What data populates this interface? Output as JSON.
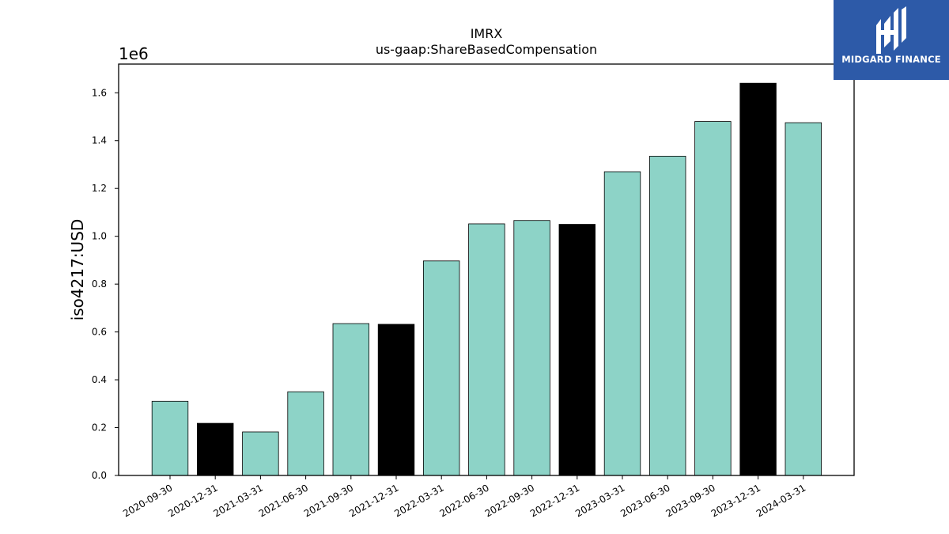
{
  "brand": {
    "name": "MIDGARD FINANCE",
    "background_color": "#2d5aa8"
  },
  "chart_data": {
    "type": "bar",
    "title": "IMRX",
    "subtitle": "us-gaap:ShareBasedCompensation",
    "xlabel": "",
    "ylabel": "iso4217:USD",
    "y_scale_label": "1e6",
    "ylim": [
      0,
      1.72
    ],
    "y_ticks": [
      "0.0",
      "0.2",
      "0.4",
      "0.6",
      "0.8",
      "1.0",
      "1.2",
      "1.4",
      "1.6"
    ],
    "categories": [
      "2020-09-30",
      "2020-12-31",
      "2021-03-31",
      "2021-06-30",
      "2021-09-30",
      "2021-12-31",
      "2022-03-31",
      "2022-06-30",
      "2022-09-30",
      "2022-12-31",
      "2023-03-31",
      "2023-06-30",
      "2023-09-30",
      "2023-12-31",
      "2024-03-31"
    ],
    "values": [
      0.31,
      0.218,
      0.182,
      0.35,
      0.635,
      0.632,
      0.897,
      1.052,
      1.066,
      1.05,
      1.27,
      1.335,
      1.48,
      1.64,
      1.475
    ],
    "bar_colors": [
      "#8dd3c7",
      "#000000",
      "#8dd3c7",
      "#8dd3c7",
      "#8dd3c7",
      "#000000",
      "#8dd3c7",
      "#8dd3c7",
      "#8dd3c7",
      "#000000",
      "#8dd3c7",
      "#8dd3c7",
      "#8dd3c7",
      "#000000",
      "#8dd3c7"
    ],
    "grid": false,
    "legend": "none"
  }
}
